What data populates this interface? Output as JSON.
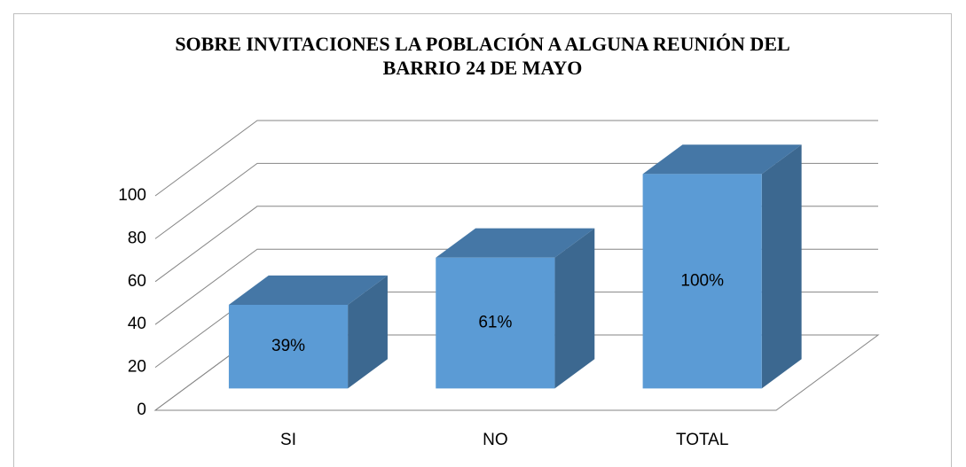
{
  "chart_data": {
    "type": "bar3d",
    "title": "SOBRE INVITACIONES LA POBLACIÓN A ALGUNA REUNIÓN DEL BARRIO 24 DE MAYO",
    "categories": [
      "SI",
      "NO",
      "TOTAL"
    ],
    "values": [
      39,
      61,
      100
    ],
    "value_labels": [
      "39%",
      "61%",
      "100%"
    ],
    "color": "#5b9bd5",
    "ylim": [
      0,
      100
    ],
    "yticks": [
      0,
      20,
      40,
      60,
      80,
      100
    ],
    "grid": true
  }
}
